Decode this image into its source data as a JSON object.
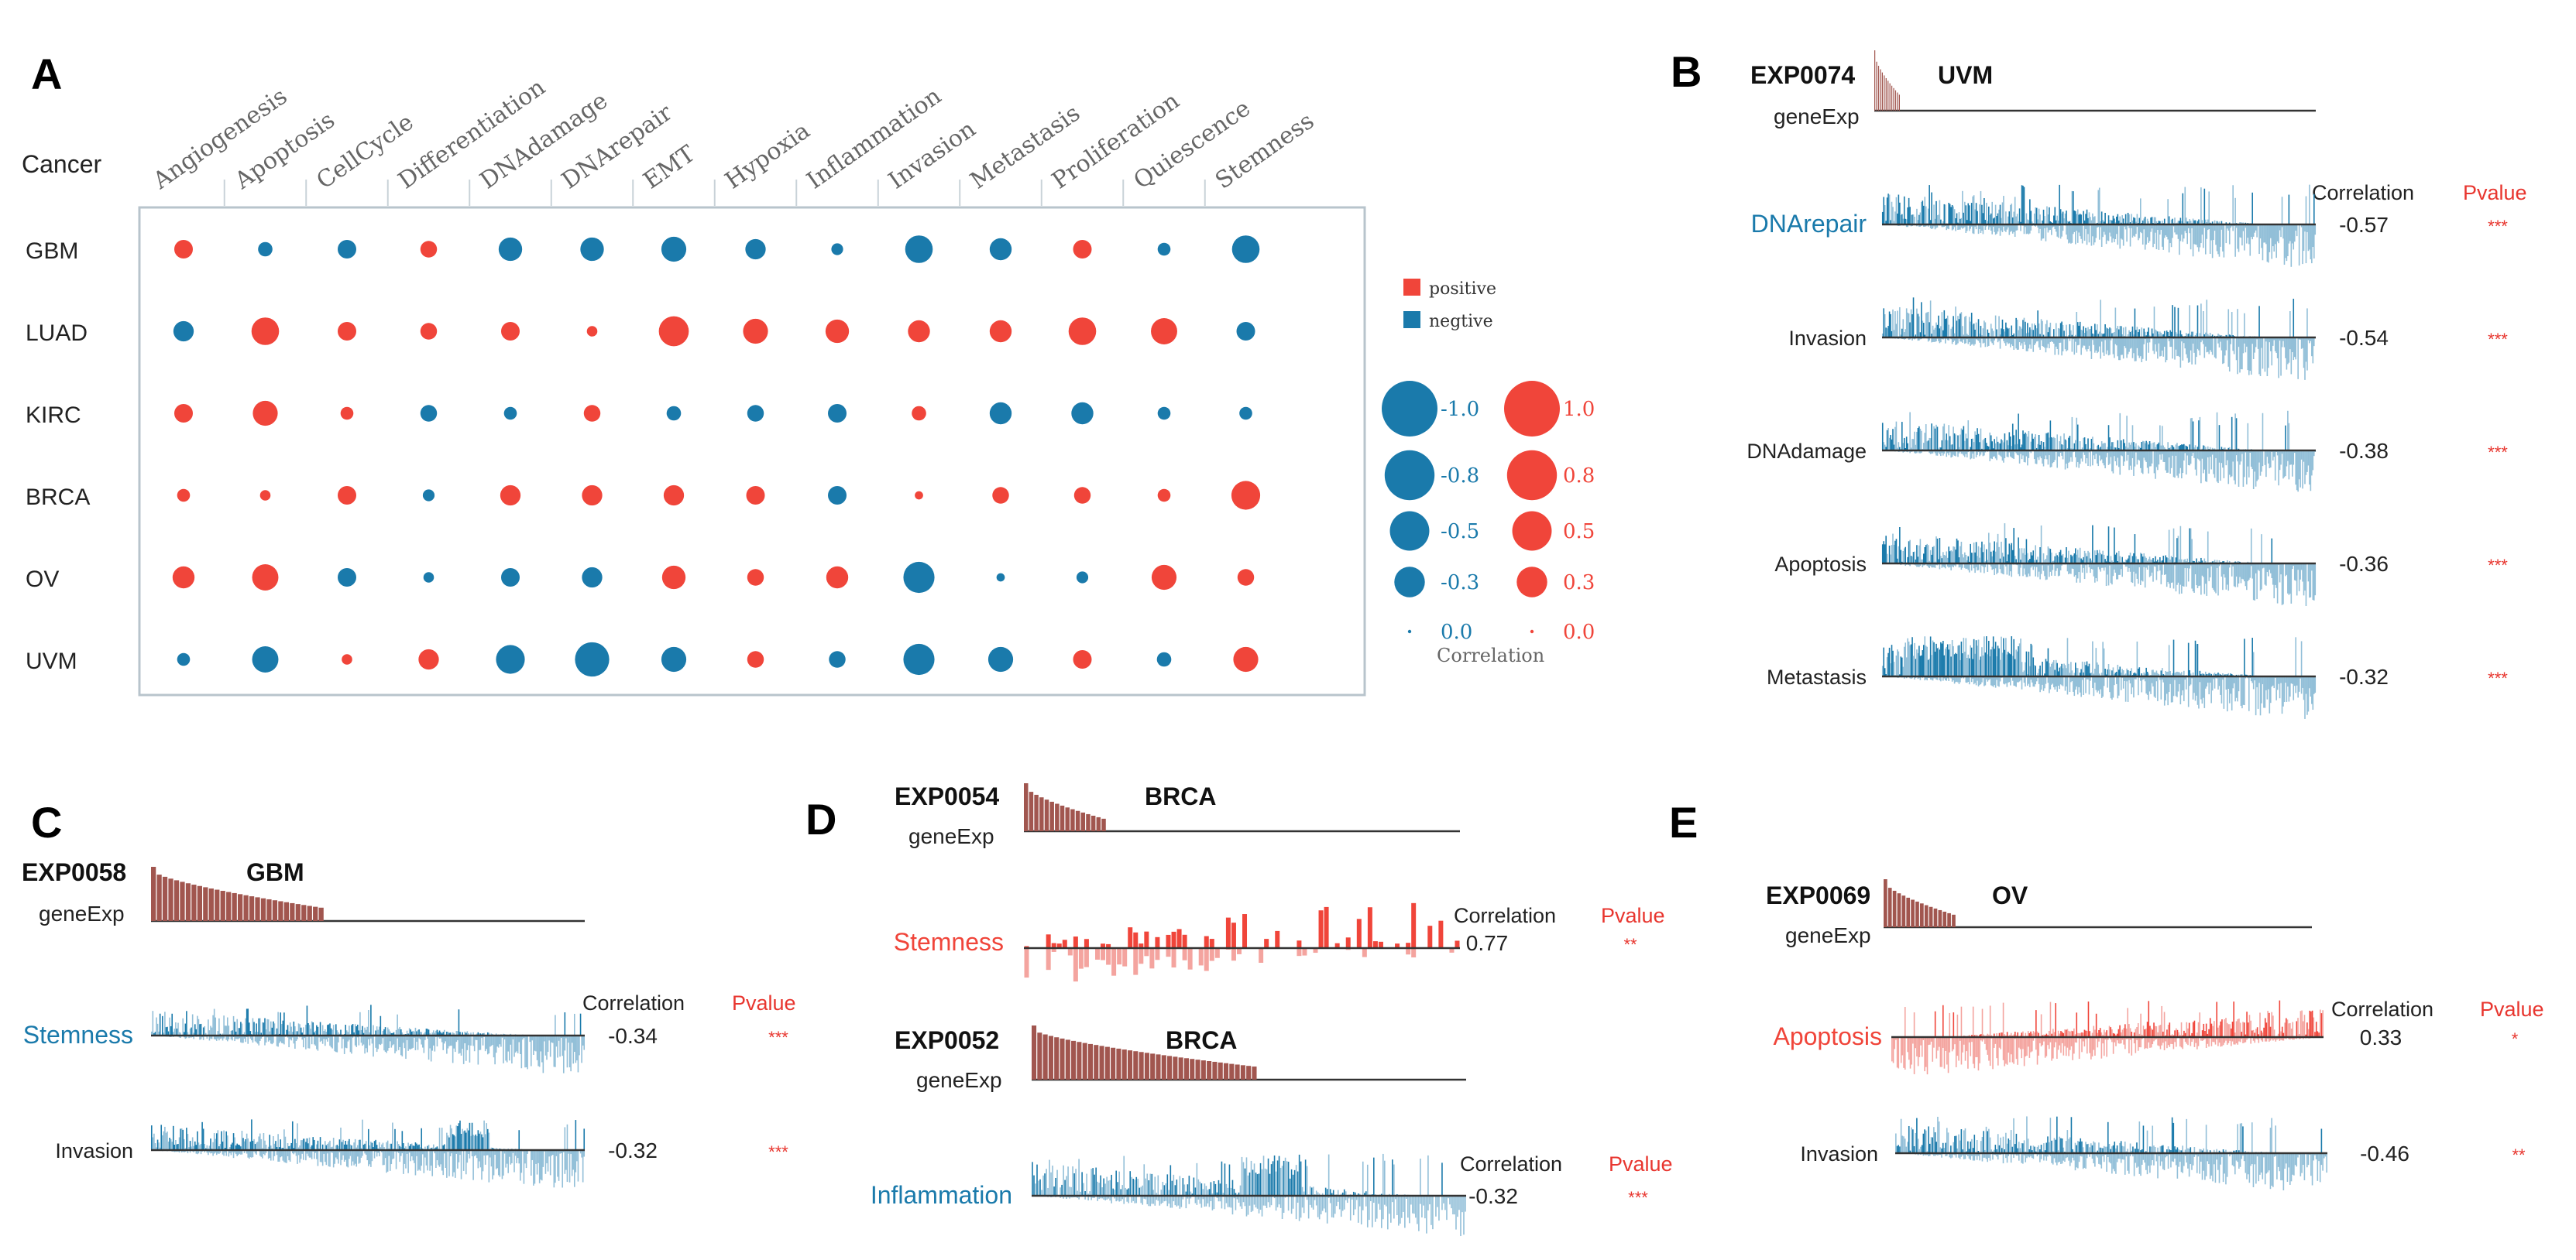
{
  "colors": {
    "positive": "#f0453a",
    "negative": "#1a7aab",
    "negLight": "#92bfd8",
    "posLight": "#f4a49f",
    "expr": "#a1564f",
    "pvalue": "#e8362f"
  },
  "chart_data": [
    {
      "panel": "A",
      "type": "bubble-matrix",
      "row_header": "Cancer",
      "columns": [
        "Angiogenesis",
        "Apoptosis",
        "CellCycle",
        "Differentiation",
        "DNAdamage",
        "DNArepair",
        "EMT",
        "Hypoxia",
        "Inflammation",
        "Invasion",
        "Metastasis",
        "Proliferation",
        "Quiescence",
        "Stemness"
      ],
      "rows": [
        "GBM",
        "LUAD",
        "KIRC",
        "BRCA",
        "OV",
        "UVM"
      ],
      "values": [
        [
          0.25,
          -0.15,
          -0.25,
          0.2,
          -0.4,
          -0.4,
          -0.45,
          -0.3,
          -0.1,
          -0.55,
          -0.35,
          0.25,
          -0.12,
          -0.55
        ],
        [
          -0.3,
          0.55,
          0.25,
          0.2,
          0.25,
          0.08,
          0.65,
          0.45,
          0.4,
          0.35,
          0.35,
          0.55,
          0.5,
          -0.25
        ],
        [
          0.25,
          0.45,
          0.12,
          -0.2,
          -0.12,
          0.2,
          -0.15,
          -0.2,
          -0.25,
          0.15,
          -0.35,
          -0.35,
          -0.12,
          -0.12
        ],
        [
          0.12,
          0.08,
          0.25,
          -0.1,
          0.3,
          0.3,
          0.3,
          0.25,
          -0.25,
          0.05,
          0.2,
          0.2,
          0.12,
          0.6
        ],
        [
          0.35,
          0.5,
          -0.25,
          -0.08,
          -0.25,
          -0.3,
          0.4,
          0.2,
          0.35,
          -0.7,
          -0.05,
          -0.1,
          0.45,
          0.2
        ],
        [
          -0.12,
          -0.5,
          0.08,
          0.3,
          -0.6,
          -0.85,
          -0.45,
          0.2,
          -0.2,
          -0.7,
          -0.45,
          0.25,
          -0.15,
          0.45
        ]
      ],
      "legend": {
        "positive": "positive",
        "negative": "negtive",
        "neg_labels": [
          "-1.0",
          "-0.8",
          "-0.5",
          "-0.3",
          "0.0"
        ],
        "pos_labels": [
          "1.0",
          "0.8",
          "0.5",
          "0.3",
          "0.0"
        ],
        "size_values": [
          1.0,
          0.8,
          0.5,
          0.3,
          0.0
        ],
        "title": "Correlation"
      }
    },
    {
      "panel": "B",
      "type": "barcode-correlation",
      "dataset": "EXP0074",
      "cancer": "UVM",
      "expr_label": "geneExp",
      "expr_fraction": 0.06,
      "header_correlation": "Correlation",
      "header_pvalue": "Pvalue",
      "tracks": [
        {
          "name": "DNArepair",
          "correlation": "-0.57",
          "pvalue": "***",
          "highlight": true
        },
        {
          "name": "Invasion",
          "correlation": "-0.54",
          "pvalue": "***",
          "highlight": false
        },
        {
          "name": "DNAdamage",
          "correlation": "-0.38",
          "pvalue": "***",
          "highlight": false
        },
        {
          "name": "Apoptosis",
          "correlation": "-0.36",
          "pvalue": "***",
          "highlight": false
        },
        {
          "name": "Metastasis",
          "correlation": "-0.32",
          "pvalue": "***",
          "highlight": false
        }
      ]
    },
    {
      "panel": "C",
      "type": "barcode-correlation",
      "dataset": "EXP0058",
      "cancer": "GBM",
      "expr_label": "geneExp",
      "expr_fraction": 0.4,
      "header_correlation": "Correlation",
      "header_pvalue": "Pvalue",
      "tracks": [
        {
          "name": "Stemness",
          "correlation": "-0.34",
          "pvalue": "***",
          "highlight": true
        },
        {
          "name": "Invasion",
          "correlation": "-0.32",
          "pvalue": "***",
          "highlight": false
        }
      ]
    },
    {
      "panel": "D",
      "type": "barcode-correlation",
      "groups": [
        {
          "dataset": "EXP0054",
          "cancer": "BRCA",
          "expr_label": "geneExp",
          "expr_fraction": 0.19,
          "header_correlation": "Correlation",
          "header_pvalue": "Pvalue",
          "tracks": [
            {
              "name": "Stemness",
              "correlation": "0.77",
              "pvalue": "**",
              "highlight": true,
              "sign": "positive"
            }
          ]
        },
        {
          "dataset": "EXP0052",
          "cancer": "BRCA",
          "expr_label": "geneExp",
          "expr_fraction": 0.52,
          "header_correlation": "Correlation",
          "header_pvalue": "Pvalue",
          "tracks": [
            {
              "name": "Inflammation",
              "correlation": "-0.32",
              "pvalue": "***",
              "highlight": true,
              "sign": "negative"
            }
          ]
        }
      ]
    },
    {
      "panel": "E",
      "type": "barcode-correlation",
      "dataset": "EXP0069",
      "cancer": "OV",
      "expr_label": "geneExp",
      "expr_fraction": 0.17,
      "header_correlation": "Correlation",
      "header_pvalue": "Pvalue",
      "tracks": [
        {
          "name": "Apoptosis",
          "correlation": "0.33",
          "pvalue": "*",
          "highlight": true,
          "sign": "positive"
        },
        {
          "name": "Invasion",
          "correlation": "-0.46",
          "pvalue": "**",
          "highlight": false,
          "sign": "negative"
        }
      ]
    }
  ]
}
